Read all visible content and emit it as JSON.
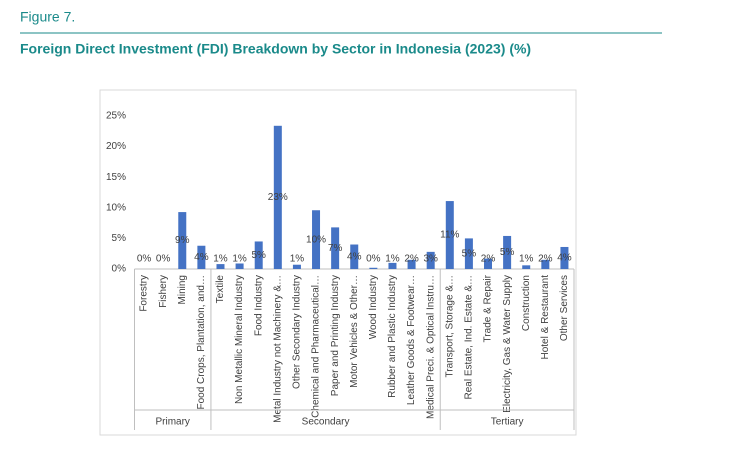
{
  "figure_label": "Figure 7.",
  "chart_data": {
    "type": "bar",
    "title": "Foreign Direct Investment (FDI) Breakdown by Sector in Indonesia (2023) (%)",
    "categories": [
      "Forestry",
      "Fishery",
      "Mining",
      "Food Crops, Plantation, and…",
      "Textile",
      "Non Metallic Mineral Industry",
      "Food Industry",
      "Metal Industry not Machinery &…",
      "Other Secondary Industry",
      "Chemical and Pharmaceutical…",
      "Paper and Printing Industry",
      "Motor Vehicles & Other…",
      "Wood Industry",
      "Rubber and Plastic Industry",
      "Leather Goods & Footwear…",
      "Medical Preci. & Optical Instru…",
      "Transport, Storage &…",
      "Real Estate, Ind. Estate &…",
      "Trade & Repair",
      "Electricity, Gas & Water Supply",
      "Construction",
      "Hotel & Restaurant",
      "Other Services"
    ],
    "values": [
      0,
      0,
      9.3,
      3.8,
      0.8,
      0.9,
      4.5,
      23.4,
      0.7,
      9.6,
      6.8,
      4.0,
      0.2,
      1.0,
      1.5,
      2.8,
      11.1,
      5.0,
      1.7,
      5.4,
      0.6,
      1.5,
      3.6
    ],
    "value_labels": [
      "0%",
      "0%",
      "9%",
      "4%",
      "1%",
      "1%",
      "5%",
      "23%",
      "1%",
      "10%",
      "7%",
      "4%",
      "0%",
      "1%",
      "2%",
      "3%",
      "11%",
      "5%",
      "2%",
      "5%",
      "1%",
      "2%",
      "4%"
    ],
    "groups": [
      {
        "label": "Primary",
        "size": 4
      },
      {
        "label": "Secondary",
        "size": 12
      },
      {
        "label": "Tertiary",
        "size": 7
      }
    ],
    "color": "#4472c4",
    "ylim": [
      0,
      25
    ],
    "yticks": [
      {
        "value": 0,
        "label": "0%"
      },
      {
        "value": 5,
        "label": "5%"
      },
      {
        "value": 10,
        "label": "10%"
      },
      {
        "value": 15,
        "label": "15%"
      },
      {
        "value": 20,
        "label": "20%"
      },
      {
        "value": 25,
        "label": "25%"
      }
    ],
    "grid": false
  }
}
